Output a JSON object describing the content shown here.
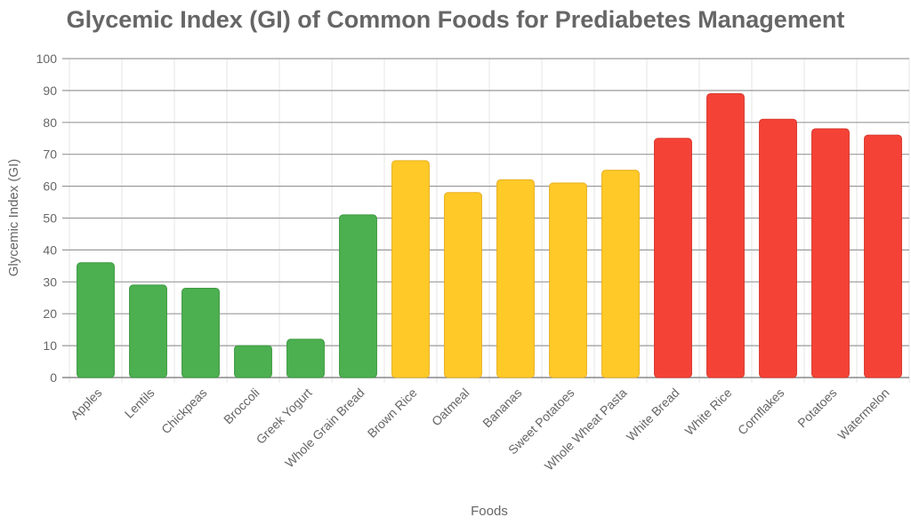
{
  "chart_data": {
    "type": "bar",
    "title": "Glycemic Index (GI) of Common Foods for Prediabetes Management",
    "xlabel": "Foods",
    "ylabel": "Glycemic Index (GI)",
    "ylim": [
      0,
      100
    ],
    "yticks": [
      0,
      10,
      20,
      30,
      40,
      50,
      60,
      70,
      80,
      90,
      100
    ],
    "grid": true,
    "categories": [
      "Apples",
      "Lentils",
      "Chickpeas",
      "Broccoli",
      "Greek Yogurt",
      "Whole Grain Bread",
      "Brown Rice",
      "Oatmeal",
      "Bananas",
      "Sweet Potatoes",
      "Whole Wheat Pasta",
      "White Bread",
      "White Rice",
      "Cornflakes",
      "Potatoes",
      "Watermelon"
    ],
    "values": [
      36,
      29,
      28,
      10,
      12,
      51,
      68,
      58,
      62,
      61,
      65,
      75,
      89,
      81,
      78,
      76
    ],
    "bar_colors": [
      "#4caf50",
      "#4caf50",
      "#4caf50",
      "#4caf50",
      "#4caf50",
      "#4caf50",
      "#ffc928",
      "#ffc928",
      "#ffc928",
      "#ffc928",
      "#ffc928",
      "#f44336",
      "#f44336",
      "#f44336",
      "#f44336",
      "#f44336"
    ],
    "bar_border_colors": [
      "#3e9a42",
      "#3e9a42",
      "#3e9a42",
      "#3e9a42",
      "#3e9a42",
      "#3e9a42",
      "#e8b020",
      "#e8b020",
      "#e8b020",
      "#e8b020",
      "#e8b020",
      "#d9362c",
      "#d9362c",
      "#d9362c",
      "#d9362c",
      "#d9362c"
    ]
  }
}
